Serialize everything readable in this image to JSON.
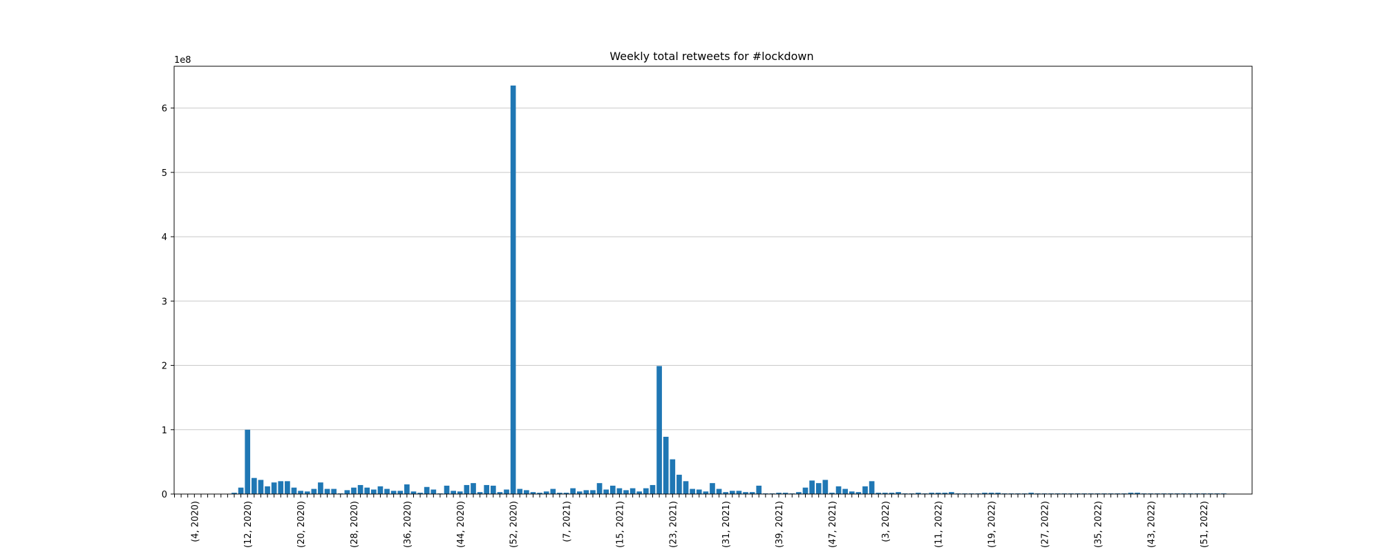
{
  "chart_data": {
    "type": "bar",
    "title": "Weekly total retweets for #lockdown",
    "xlabel": "",
    "ylabel": "",
    "y_offset_label": "1e8",
    "y_multiplier": 100000000,
    "ylim": [
      0,
      6.65
    ],
    "yticks": [
      0,
      1,
      2,
      3,
      4,
      5,
      6
    ],
    "ytick_labels": [
      "0",
      "1",
      "2",
      "3",
      "4",
      "5",
      "6"
    ],
    "grid": "y",
    "color": "#1f77b4",
    "x_start": {
      "week": 1,
      "year": 2020
    },
    "tick_every": 8,
    "tick_labels": [
      "(4, 2020)",
      "(12, 2020)",
      "(20, 2020)",
      "(28, 2020)",
      "(36, 2020)",
      "(44, 2020)",
      "(52, 2020)",
      "(7, 2021)",
      "(15, 2021)",
      "(23, 2021)",
      "(31, 2021)",
      "(39, 2021)",
      "(47, 2021)",
      "(3, 2022)",
      "(11, 2022)",
      "(19, 2022)",
      "(27, 2022)",
      "(35, 2022)",
      "(43, 2022)",
      "(51, 2022)"
    ],
    "values": [
      0,
      0,
      0,
      0,
      0,
      0,
      0,
      0,
      0,
      0.02,
      0.1,
      1.0,
      0.25,
      0.22,
      0.12,
      0.18,
      0.2,
      0.2,
      0.1,
      0.05,
      0.04,
      0.08,
      0.18,
      0.08,
      0.08,
      0.01,
      0.06,
      0.1,
      0.14,
      0.1,
      0.07,
      0.12,
      0.08,
      0.05,
      0.05,
      0.15,
      0.04,
      0.02,
      0.11,
      0.07,
      0.01,
      0.13,
      0.05,
      0.04,
      0.14,
      0.17,
      0.03,
      0.14,
      0.13,
      0.03,
      0.07,
      6.35,
      0.08,
      0.06,
      0.03,
      0.02,
      0.04,
      0.08,
      0.02,
      0.02,
      0.09,
      0.04,
      0.06,
      0.06,
      0.17,
      0.07,
      0.13,
      0.09,
      0.06,
      0.09,
      0.04,
      0.09,
      0.14,
      1.99,
      0.89,
      0.54,
      0.3,
      0.2,
      0.08,
      0.07,
      0.04,
      0.17,
      0.08,
      0.03,
      0.05,
      0.05,
      0.03,
      0.03,
      0.13,
      0.01,
      0.01,
      0.02,
      0.02,
      0.01,
      0.03,
      0.1,
      0.21,
      0.17,
      0.22,
      0.02,
      0.12,
      0.08,
      0.04,
      0.03,
      0.12,
      0.2,
      0.02,
      0.02,
      0.02,
      0.03,
      0.01,
      0.01,
      0.02,
      0.01,
      0.02,
      0.02,
      0.02,
      0.03,
      0.01,
      0.01,
      0.01,
      0.01,
      0.02,
      0.02,
      0.02,
      0.01,
      0.01,
      0.01,
      0.01,
      0.02,
      0.01,
      0.01,
      0.01,
      0.01,
      0.01,
      0.01,
      0.01,
      0.01,
      0.01,
      0.01,
      0.01,
      0.01,
      0.01,
      0.01,
      0.02,
      0.02,
      0.01,
      0.01,
      0.01,
      0.01,
      0.01,
      0.01,
      0.01,
      0.01,
      0.01,
      0.01,
      0.01,
      0.01,
      0.01
    ]
  }
}
